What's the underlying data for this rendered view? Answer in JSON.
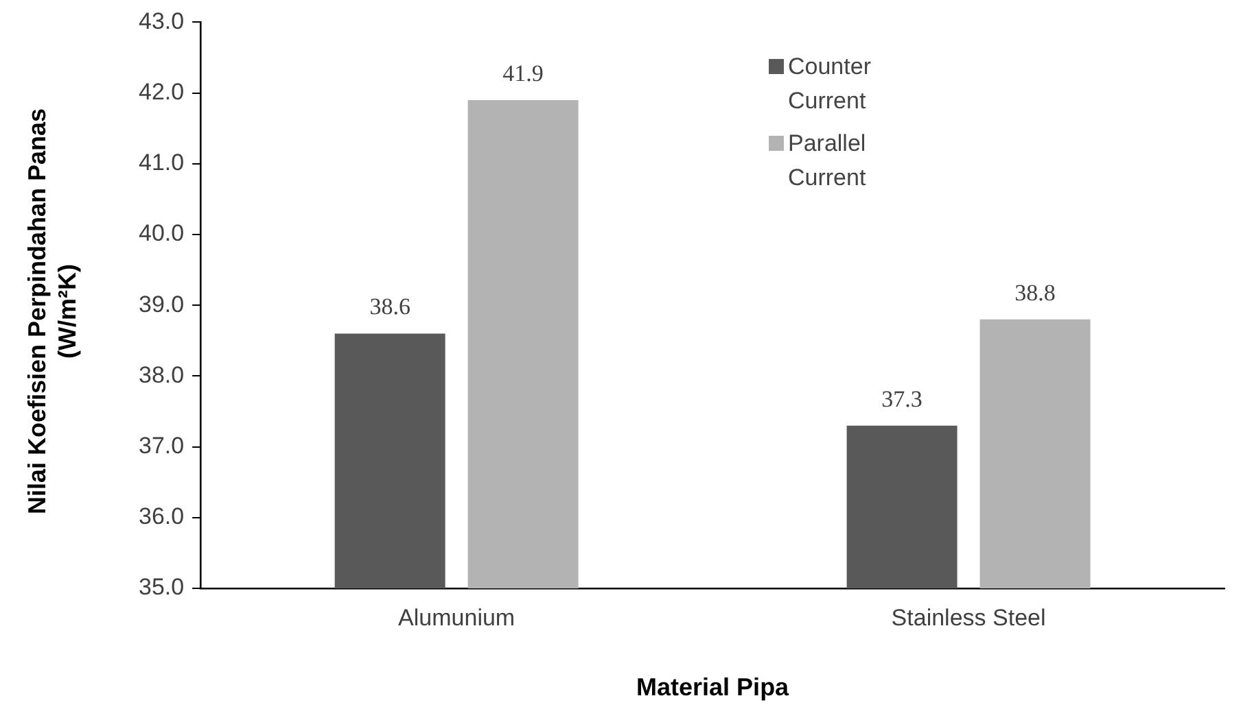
{
  "chart_data": {
    "type": "bar",
    "xlabel": "Material Pipa",
    "ylabel": "Nilai Koefisien Perpindahan Panas (W/m²K)",
    "categories": [
      "Alumunium",
      "Stainless Steel"
    ],
    "series": [
      {
        "name": "Counter Current",
        "color": "#595959",
        "values": [
          38.6,
          37.3
        ]
      },
      {
        "name": "Parallel Current",
        "color": "#b3b3b3",
        "values": [
          41.9,
          38.8
        ]
      }
    ],
    "ylim": [
      35,
      43
    ],
    "yticks": [
      {
        "value": 35,
        "label": "35.0"
      },
      {
        "value": 36,
        "label": "36.0"
      },
      {
        "value": 37,
        "label": "37.0"
      },
      {
        "value": 38,
        "label": "38.0"
      },
      {
        "value": 39,
        "label": "39.0"
      },
      {
        "value": 40,
        "label": "40.0"
      },
      {
        "value": 41,
        "label": "41.0"
      },
      {
        "value": 42,
        "label": "42.0"
      },
      {
        "value": 43,
        "label": "43.0"
      }
    ],
    "grid": false,
    "legend": "top right",
    "data_labels": true
  }
}
